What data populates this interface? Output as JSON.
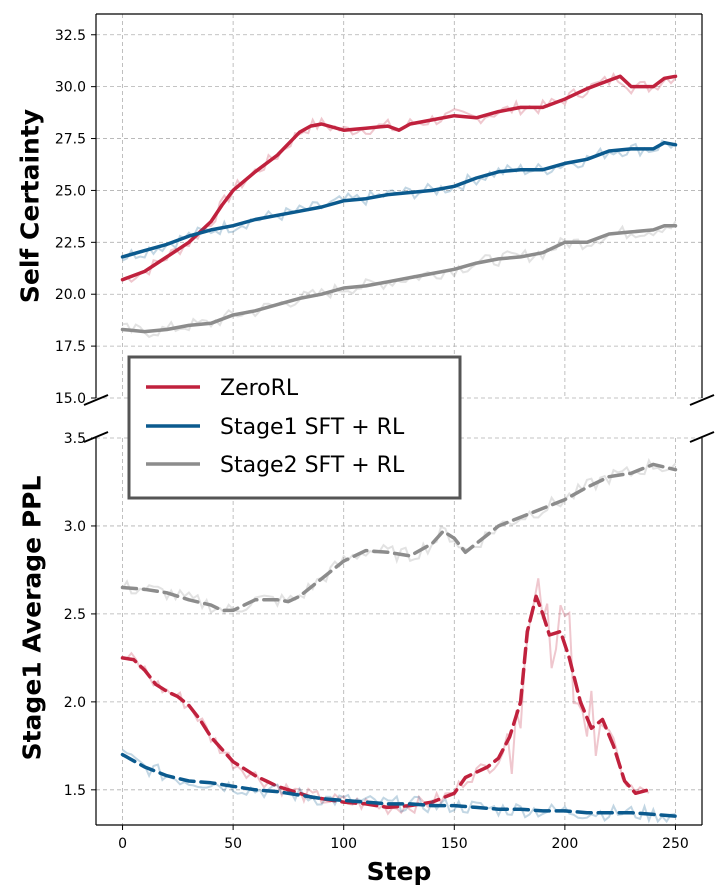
{
  "chart_data": {
    "type": "line",
    "xlabel": "Step",
    "x_ticks": [
      0,
      50,
      100,
      150,
      200,
      250
    ],
    "legend": {
      "placement": "center-left",
      "entries": [
        "ZeroRL",
        "Stage1 SFT + RL",
        "Stage2 SFT + RL"
      ]
    },
    "colors": {
      "ZeroRL": "#c0213d",
      "Stage1 SFT + RL": "#0b5a8e",
      "Stage2 SFT + RL": "#8c8c8c"
    },
    "panels": [
      {
        "name": "top",
        "ylabel": "Self Certainty",
        "ylim": [
          15.0,
          33.5
        ],
        "y_ticks": [
          "15.0",
          "17.5",
          "20.0",
          "22.5",
          "25.0",
          "27.5",
          "30.0",
          "32.5"
        ],
        "line_style": "solid",
        "series": [
          {
            "name": "ZeroRL",
            "points": [
              [
                0,
                20.7
              ],
              [
                10,
                21.1
              ],
              [
                20,
                21.8
              ],
              [
                30,
                22.5
              ],
              [
                40,
                23.5
              ],
              [
                45,
                24.3
              ],
              [
                50,
                25.0
              ],
              [
                60,
                25.9
              ],
              [
                70,
                26.7
              ],
              [
                80,
                27.8
              ],
              [
                85,
                28.1
              ],
              [
                90,
                28.2
              ],
              [
                100,
                27.9
              ],
              [
                110,
                28.0
              ],
              [
                120,
                28.1
              ],
              [
                125,
                27.9
              ],
              [
                130,
                28.2
              ],
              [
                140,
                28.4
              ],
              [
                150,
                28.6
              ],
              [
                160,
                28.5
              ],
              [
                170,
                28.8
              ],
              [
                180,
                29.0
              ],
              [
                190,
                29.0
              ],
              [
                200,
                29.4
              ],
              [
                210,
                29.9
              ],
              [
                220,
                30.3
              ],
              [
                225,
                30.5
              ],
              [
                230,
                30.0
              ],
              [
                240,
                30.0
              ],
              [
                245,
                30.4
              ],
              [
                250,
                30.5
              ]
            ]
          },
          {
            "name": "Stage1 SFT + RL",
            "points": [
              [
                0,
                21.8
              ],
              [
                10,
                22.1
              ],
              [
                20,
                22.4
              ],
              [
                30,
                22.8
              ],
              [
                40,
                23.1
              ],
              [
                50,
                23.3
              ],
              [
                60,
                23.6
              ],
              [
                70,
                23.8
              ],
              [
                80,
                24.0
              ],
              [
                90,
                24.2
              ],
              [
                100,
                24.5
              ],
              [
                110,
                24.6
              ],
              [
                120,
                24.8
              ],
              [
                130,
                24.9
              ],
              [
                140,
                25.0
              ],
              [
                150,
                25.2
              ],
              [
                160,
                25.6
              ],
              [
                170,
                25.9
              ],
              [
                180,
                26.0
              ],
              [
                190,
                26.0
              ],
              [
                200,
                26.3
              ],
              [
                210,
                26.5
              ],
              [
                220,
                26.9
              ],
              [
                230,
                27.0
              ],
              [
                240,
                27.0
              ],
              [
                245,
                27.3
              ],
              [
                250,
                27.2
              ]
            ]
          },
          {
            "name": "Stage2 SFT + RL",
            "points": [
              [
                0,
                18.3
              ],
              [
                10,
                18.2
              ],
              [
                20,
                18.3
              ],
              [
                30,
                18.5
              ],
              [
                40,
                18.6
              ],
              [
                50,
                19.0
              ],
              [
                60,
                19.2
              ],
              [
                70,
                19.5
              ],
              [
                80,
                19.8
              ],
              [
                90,
                20.0
              ],
              [
                100,
                20.3
              ],
              [
                110,
                20.4
              ],
              [
                120,
                20.6
              ],
              [
                130,
                20.8
              ],
              [
                140,
                21.0
              ],
              [
                150,
                21.2
              ],
              [
                160,
                21.5
              ],
              [
                170,
                21.7
              ],
              [
                180,
                21.8
              ],
              [
                190,
                22.0
              ],
              [
                200,
                22.5
              ],
              [
                210,
                22.5
              ],
              [
                220,
                22.9
              ],
              [
                230,
                23.0
              ],
              [
                240,
                23.1
              ],
              [
                245,
                23.3
              ],
              [
                250,
                23.3
              ]
            ]
          }
        ]
      },
      {
        "name": "bottom",
        "ylabel": "Stage1 Average PPL",
        "ylim": [
          1.3,
          3.5
        ],
        "y_ticks": [
          "1.5",
          "2.0",
          "2.5",
          "3.0",
          "3.5"
        ],
        "line_style": "dashed",
        "series": [
          {
            "name": "ZeroRL",
            "points": [
              [
                0,
                2.25
              ],
              [
                5,
                2.24
              ],
              [
                10,
                2.18
              ],
              [
                15,
                2.1
              ],
              [
                20,
                2.06
              ],
              [
                25,
                2.03
              ],
              [
                30,
                1.98
              ],
              [
                35,
                1.9
              ],
              [
                40,
                1.8
              ],
              [
                45,
                1.73
              ],
              [
                50,
                1.66
              ],
              [
                55,
                1.62
              ],
              [
                60,
                1.58
              ],
              [
                65,
                1.55
              ],
              [
                70,
                1.52
              ],
              [
                75,
                1.5
              ],
              [
                80,
                1.48
              ],
              [
                85,
                1.46
              ],
              [
                90,
                1.45
              ],
              [
                100,
                1.43
              ],
              [
                110,
                1.42
              ],
              [
                120,
                1.4
              ],
              [
                130,
                1.41
              ],
              [
                140,
                1.43
              ],
              [
                150,
                1.48
              ],
              [
                155,
                1.57
              ],
              [
                160,
                1.6
              ],
              [
                165,
                1.63
              ],
              [
                170,
                1.68
              ],
              [
                175,
                1.8
              ],
              [
                180,
                2.0
              ],
              [
                183,
                2.4
              ],
              [
                187,
                2.6
              ],
              [
                190,
                2.5
              ],
              [
                193,
                2.38
              ],
              [
                198,
                2.4
              ],
              [
                202,
                2.25
              ],
              [
                207,
                2.0
              ],
              [
                212,
                1.85
              ],
              [
                217,
                1.9
              ],
              [
                222,
                1.75
              ],
              [
                227,
                1.55
              ],
              [
                232,
                1.48
              ],
              [
                238,
                1.5
              ]
            ]
          },
          {
            "name": "Stage1 SFT + RL",
            "points": [
              [
                0,
                1.7
              ],
              [
                10,
                1.63
              ],
              [
                20,
                1.58
              ],
              [
                30,
                1.55
              ],
              [
                40,
                1.54
              ],
              [
                50,
                1.52
              ],
              [
                60,
                1.5
              ],
              [
                70,
                1.49
              ],
              [
                80,
                1.47
              ],
              [
                90,
                1.45
              ],
              [
                100,
                1.44
              ],
              [
                110,
                1.43
              ],
              [
                120,
                1.42
              ],
              [
                130,
                1.42
              ],
              [
                140,
                1.41
              ],
              [
                150,
                1.41
              ],
              [
                160,
                1.4
              ],
              [
                170,
                1.39
              ],
              [
                180,
                1.39
              ],
              [
                190,
                1.38
              ],
              [
                200,
                1.38
              ],
              [
                210,
                1.37
              ],
              [
                220,
                1.37
              ],
              [
                230,
                1.37
              ],
              [
                240,
                1.36
              ],
              [
                250,
                1.35
              ]
            ]
          },
          {
            "name": "Stage2 SFT + RL",
            "points": [
              [
                0,
                2.65
              ],
              [
                10,
                2.64
              ],
              [
                20,
                2.62
              ],
              [
                30,
                2.58
              ],
              [
                40,
                2.55
              ],
              [
                45,
                2.52
              ],
              [
                50,
                2.52
              ],
              [
                55,
                2.55
              ],
              [
                60,
                2.58
              ],
              [
                70,
                2.58
              ],
              [
                75,
                2.57
              ],
              [
                80,
                2.6
              ],
              [
                90,
                2.7
              ],
              [
                100,
                2.8
              ],
              [
                110,
                2.86
              ],
              [
                120,
                2.85
              ],
              [
                130,
                2.83
              ],
              [
                140,
                2.9
              ],
              [
                145,
                2.97
              ],
              [
                150,
                2.93
              ],
              [
                155,
                2.85
              ],
              [
                160,
                2.9
              ],
              [
                170,
                3.0
              ],
              [
                180,
                3.05
              ],
              [
                190,
                3.1
              ],
              [
                200,
                3.15
              ],
              [
                210,
                3.22
              ],
              [
                220,
                3.28
              ],
              [
                230,
                3.3
              ],
              [
                240,
                3.35
              ],
              [
                250,
                3.32
              ]
            ]
          }
        ]
      }
    ]
  }
}
